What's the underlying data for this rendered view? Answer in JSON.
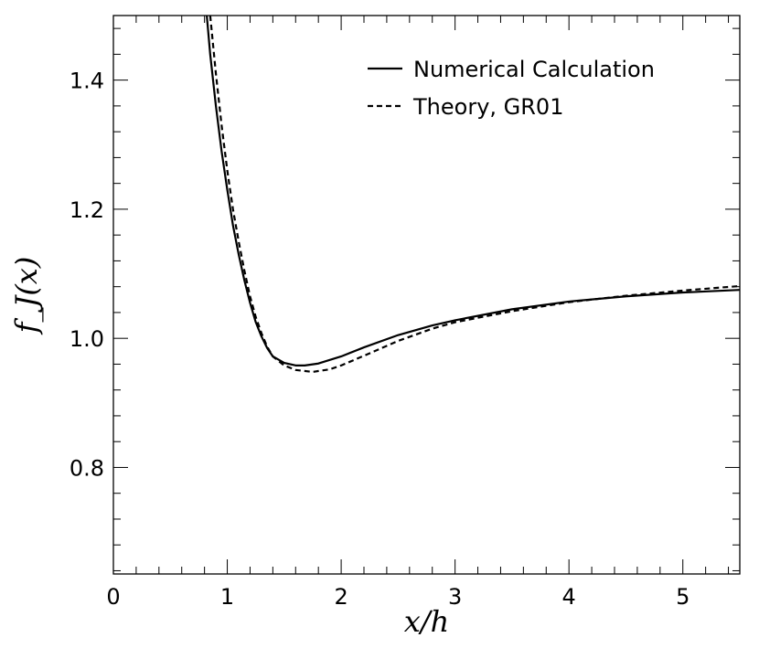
{
  "chart_data": {
    "type": "line",
    "title": "",
    "xlabel": "x/h",
    "ylabel": "f_J(x)",
    "xlim": [
      0,
      5.5
    ],
    "ylim": [
      0.635,
      1.5
    ],
    "xticks": [
      0,
      1,
      2,
      3,
      4,
      5
    ],
    "xtick_labels": [
      "0",
      "1",
      "2",
      "3",
      "4",
      "5"
    ],
    "yticks": [
      0.8,
      1.0,
      1.2,
      1.4
    ],
    "ytick_labels": [
      "0.8",
      "1.0",
      "1.2",
      "1.4"
    ],
    "grid": false,
    "legend_position": "top-right",
    "series": [
      {
        "name": "Numerical Calculation",
        "style": "solid",
        "color": "#000000",
        "x": [
          0.82,
          0.85,
          0.9,
          0.95,
          1.0,
          1.05,
          1.1,
          1.15,
          1.2,
          1.25,
          1.3,
          1.35,
          1.4,
          1.5,
          1.6,
          1.68,
          1.8,
          2.0,
          2.2,
          2.5,
          2.8,
          3.0,
          3.5,
          4.0,
          4.5,
          5.0,
          5.5
        ],
        "y": [
          1.5,
          1.44,
          1.36,
          1.29,
          1.23,
          1.175,
          1.13,
          1.09,
          1.055,
          1.025,
          1.003,
          0.985,
          0.972,
          0.962,
          0.958,
          0.958,
          0.961,
          0.972,
          0.986,
          1.005,
          1.02,
          1.028,
          1.045,
          1.057,
          1.065,
          1.071,
          1.075
        ]
      },
      {
        "name": "Theory, GR01",
        "style": "dashed",
        "color": "#000000",
        "x": [
          0.85,
          0.9,
          0.95,
          1.0,
          1.05,
          1.1,
          1.15,
          1.2,
          1.25,
          1.3,
          1.35,
          1.4,
          1.5,
          1.6,
          1.75,
          1.9,
          2.0,
          2.2,
          2.5,
          2.8,
          3.0,
          3.5,
          4.0,
          4.5,
          5.0,
          5.5
        ],
        "y": [
          1.5,
          1.41,
          1.33,
          1.26,
          1.2,
          1.15,
          1.105,
          1.065,
          1.033,
          1.008,
          0.987,
          0.972,
          0.958,
          0.951,
          0.948,
          0.952,
          0.958,
          0.973,
          0.996,
          1.015,
          1.025,
          1.042,
          1.056,
          1.066,
          1.074,
          1.081
        ]
      }
    ]
  }
}
